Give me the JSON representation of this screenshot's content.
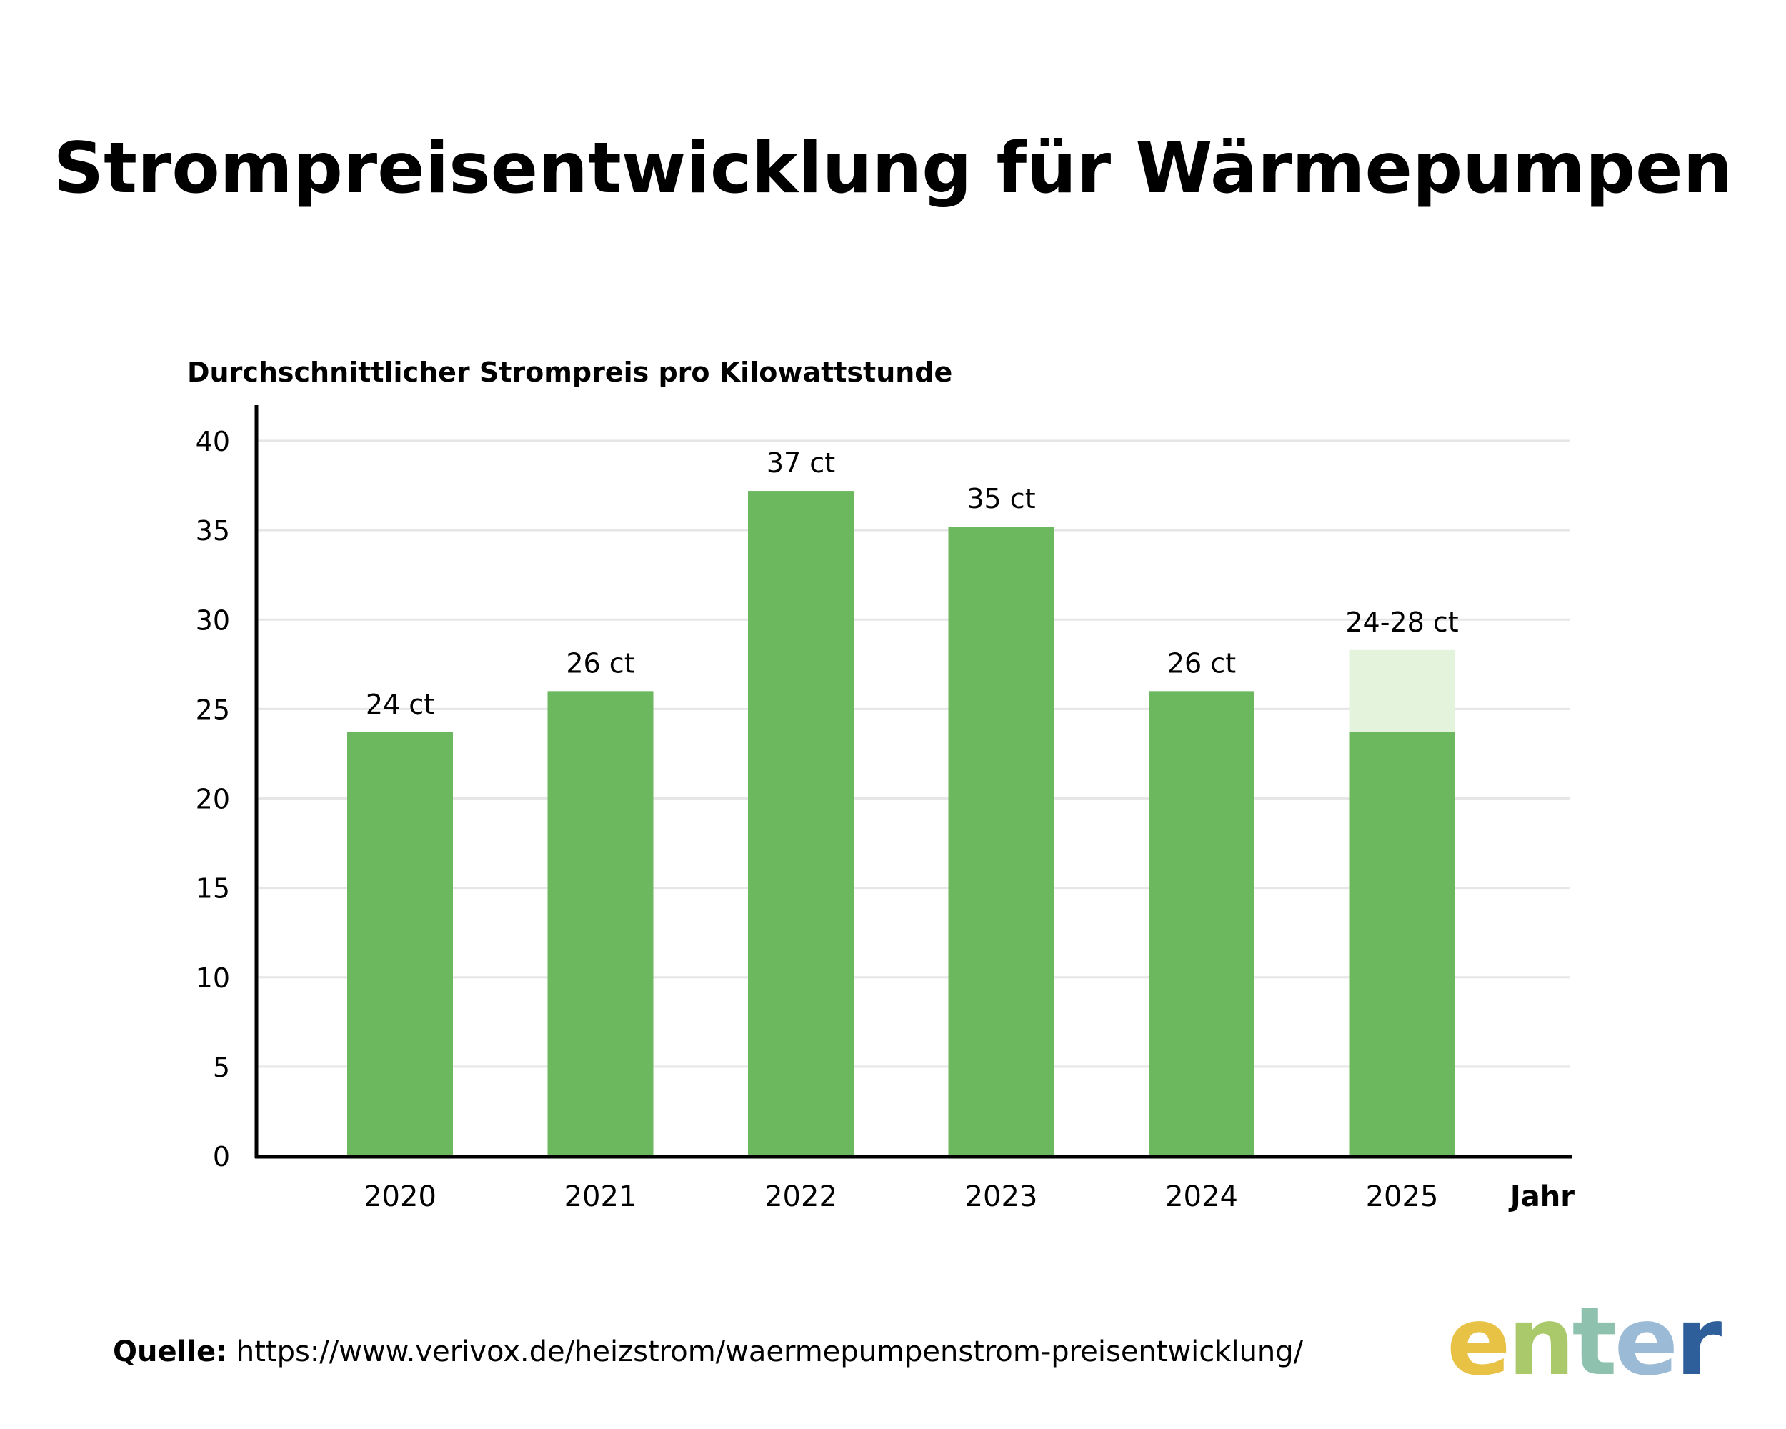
{
  "title": "Strompreisentwicklung für Wärmepumpen",
  "chart_data": {
    "type": "bar",
    "title": "Strompreisentwicklung für Wärmepumpen",
    "ylabel": "Durchschnittlicher Strompreis pro Kilowattstunde",
    "xlabel": "Jahr",
    "categories": [
      "2020",
      "2021",
      "2022",
      "2023",
      "2024",
      "2025"
    ],
    "values": [
      23.7,
      26,
      37.2,
      35.2,
      26,
      23.7
    ],
    "range_upper": [
      null,
      null,
      null,
      null,
      null,
      28.3
    ],
    "data_labels": [
      "24 ct",
      "26 ct",
      "37 ct",
      "35 ct",
      "26 ct",
      "24-28 ct"
    ],
    "ylim": [
      0,
      40
    ],
    "yticks": [
      0,
      5,
      10,
      15,
      20,
      25,
      30,
      35,
      40
    ],
    "grid": true,
    "colors": {
      "bar": "#6cb85e",
      "range": "#e4f3dc",
      "grid": "#e6e6e6",
      "axis": "#000000"
    }
  },
  "source": {
    "label": "Quelle:",
    "url": "https://www.verivox.de/heizstrom/waermepumpenstrom-preisentwicklung/"
  },
  "logo": {
    "text": "enter",
    "colors": [
      "#e8c245",
      "#a9c96a",
      "#8fc2ae",
      "#9bbad6",
      "#2e5f9a"
    ]
  }
}
